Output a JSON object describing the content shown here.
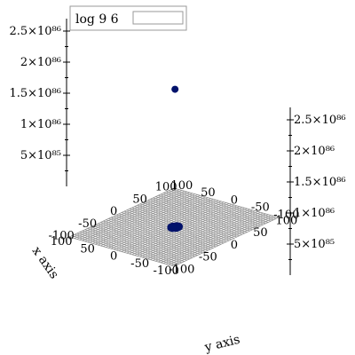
{
  "chart_data": {
    "type": "scatter",
    "title": "",
    "legend": {
      "label": "log 9 6",
      "position": "top-left"
    },
    "axes": {
      "x": {
        "label": "x axis",
        "range": [
          -100,
          100
        ],
        "ticks": [
          "-100",
          "-50",
          "0",
          "50",
          "100"
        ]
      },
      "y": {
        "label": "y axis",
        "range": [
          -100,
          100
        ],
        "ticks": [
          "-100",
          "-50",
          "0",
          "50",
          "100"
        ]
      },
      "z": {
        "label": "",
        "range": [
          0,
          2.7e+86
        ],
        "ticks": [
          "5×10⁸⁵",
          "1×10⁸⁶",
          "1.5×10⁸⁶",
          "2×10⁸⁶",
          "2.5×10⁸⁶"
        ],
        "tick_values": [
          5e+85,
          1e+86,
          1.5e+86,
          2e+86,
          2.5e+86
        ]
      }
    },
    "grid": true,
    "surface": "mesh grid on the z = 0 plane",
    "marker_color": "#00126b",
    "series": [
      {
        "points": [
          {
            "x": 2,
            "y": 4,
            "z": 2.2e+86
          },
          {
            "x": -4,
            "y": 6,
            "z": 0
          },
          {
            "x": -2,
            "y": 6,
            "z": 0
          },
          {
            "x": 0,
            "y": 6,
            "z": 0
          },
          {
            "x": -6,
            "y": 4,
            "z": 0
          },
          {
            "x": -4,
            "y": 4,
            "z": 0
          },
          {
            "x": -2,
            "y": 4,
            "z": 0
          },
          {
            "x": 0,
            "y": 4,
            "z": 0
          },
          {
            "x": 2,
            "y": 4,
            "z": 0
          },
          {
            "x": -6,
            "y": 2,
            "z": 0
          },
          {
            "x": -4,
            "y": 2,
            "z": 0
          },
          {
            "x": -2,
            "y": 2,
            "z": 0
          },
          {
            "x": 0,
            "y": 2,
            "z": 0
          },
          {
            "x": 2,
            "y": 2,
            "z": 0
          },
          {
            "x": 4,
            "y": 2,
            "z": 0
          },
          {
            "x": -6,
            "y": 0,
            "z": 0
          },
          {
            "x": -4,
            "y": 0,
            "z": 0
          },
          {
            "x": -2,
            "y": 0,
            "z": 0
          },
          {
            "x": 0,
            "y": 0,
            "z": 0
          },
          {
            "x": 2,
            "y": 0,
            "z": 0
          },
          {
            "x": 4,
            "y": 0,
            "z": 0
          },
          {
            "x": -4,
            "y": -2,
            "z": 0
          },
          {
            "x": -2,
            "y": -2,
            "z": 0
          },
          {
            "x": 0,
            "y": -2,
            "z": 0
          },
          {
            "x": 2,
            "y": -2,
            "z": 0
          },
          {
            "x": 4,
            "y": -2,
            "z": 0
          },
          {
            "x": -2,
            "y": -4,
            "z": 0
          },
          {
            "x": 0,
            "y": -4,
            "z": 0
          },
          {
            "x": 2,
            "y": -4,
            "z": 0
          }
        ]
      }
    ]
  }
}
